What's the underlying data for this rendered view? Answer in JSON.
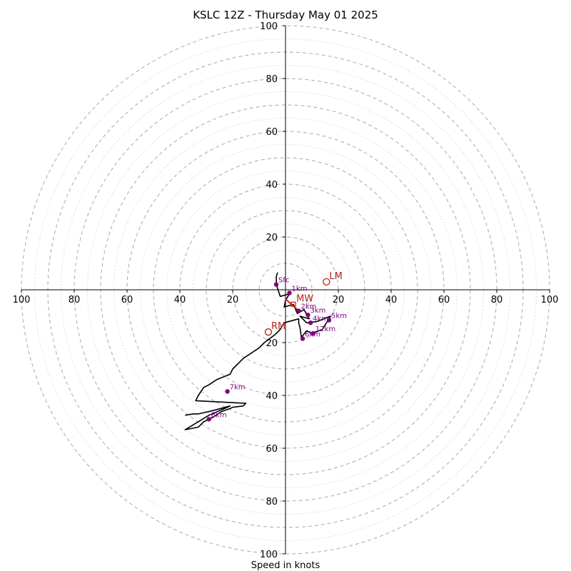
{
  "chart_data": {
    "type": "scatter",
    "title": "KSLC 12Z - Thursday May 01 2025",
    "xlabel": "Speed in knots",
    "ylabel": "",
    "xlim": [
      -100,
      100
    ],
    "ylim": [
      -100,
      100
    ],
    "ring_step_major": 10,
    "ring_step_minor": 5,
    "x_ticks": [
      "100",
      "80",
      "60",
      "40",
      "20",
      "20",
      "40",
      "60",
      "80",
      "100"
    ],
    "y_ticks": [
      "100",
      "80",
      "60",
      "40",
      "20",
      "20",
      "40",
      "60",
      "80",
      "100"
    ],
    "x_tick_values": [
      -100,
      -80,
      -60,
      -40,
      -20,
      20,
      40,
      60,
      80,
      100
    ],
    "y_tick_values": [
      100,
      80,
      60,
      40,
      20,
      -20,
      -40,
      -60,
      -80,
      -100
    ],
    "hodograph_trace": {
      "color": "#000000",
      "points": [
        [
          -3,
          6.5
        ],
        [
          -3.5,
          5
        ],
        [
          -3.5,
          2
        ],
        [
          -2,
          -2.5
        ],
        [
          1.5,
          -1.5
        ],
        [
          0,
          -4
        ],
        [
          -0.5,
          -6.5
        ],
        [
          3,
          -5.5
        ],
        [
          4.5,
          -9
        ],
        [
          7,
          -7.5
        ],
        [
          9,
          -11
        ],
        [
          5.5,
          -10
        ],
        [
          8,
          -12.5
        ],
        [
          12,
          -12
        ],
        [
          17,
          -10
        ],
        [
          14,
          -15
        ],
        [
          10,
          -16.5
        ],
        [
          8,
          -15.5
        ],
        [
          6,
          -18
        ],
        [
          5.5,
          -14.5
        ],
        [
          5,
          -12.5
        ],
        [
          5,
          -11
        ],
        [
          -0.5,
          -12.5
        ],
        [
          -2,
          -15
        ],
        [
          -4,
          -17
        ],
        [
          -8,
          -20
        ],
        [
          -10,
          -22
        ],
        [
          -16,
          -26
        ],
        [
          -20,
          -30
        ],
        [
          -21,
          -32
        ],
        [
          -26,
          -34
        ],
        [
          -29,
          -36
        ],
        [
          -31,
          -37
        ],
        [
          -33,
          -40
        ],
        [
          -34,
          -42
        ],
        [
          -15,
          -43
        ],
        [
          -16,
          -44
        ],
        [
          -20,
          -44.5
        ],
        [
          -21,
          -45
        ],
        [
          -24,
          -46
        ],
        [
          -27,
          -48
        ],
        [
          -31,
          -50
        ],
        [
          -33,
          -52
        ],
        [
          -38,
          -53
        ],
        [
          -29,
          -47.5
        ],
        [
          -22,
          -44.5
        ],
        [
          -21,
          -44
        ],
        [
          -28.5,
          -46
        ],
        [
          -33,
          -47
        ],
        [
          -35,
          -47
        ],
        [
          -38,
          -47.5
        ]
      ]
    },
    "height_markers": [
      {
        "label": "Sfc",
        "u": -3.5,
        "v": 2
      },
      {
        "label": "1km",
        "u": 1.5,
        "v": -1.2
      },
      {
        "label": "2km",
        "u": 5,
        "v": -8
      },
      {
        "label": "3km",
        "u": 8.5,
        "v": -9.5
      },
      {
        "label": "4km",
        "u": 9.5,
        "v": -12.5
      },
      {
        "label": "5km",
        "u": 16.5,
        "v": -11.5
      },
      {
        "label": "6km",
        "u": 6.5,
        "v": -18.5
      },
      {
        "label": "12km",
        "u": 10.5,
        "v": -16.5
      },
      {
        "label": "7km",
        "u": -22,
        "v": -38.5
      },
      {
        "label": "8km",
        "u": -29,
        "v": -49
      }
    ],
    "storm_motion": [
      {
        "label": "LM",
        "u": 15.5,
        "v": 3
      },
      {
        "label": "RM",
        "u": -6.5,
        "v": -16
      },
      {
        "label": "MW",
        "u": 3,
        "v": -5.5
      }
    ],
    "storm_motion_vector": {
      "u_from": 0,
      "v_from": -3.5,
      "u_to": 4.5,
      "v_to": -7.5
    },
    "colors": {
      "ring_major": "#b0b0b0",
      "ring_minor": "#cfcfcf",
      "axis": "#000000",
      "trace": "#000000",
      "height_marker": "#800080",
      "storm_motion": "#b22222",
      "motion_vector": "#dd2200"
    }
  }
}
